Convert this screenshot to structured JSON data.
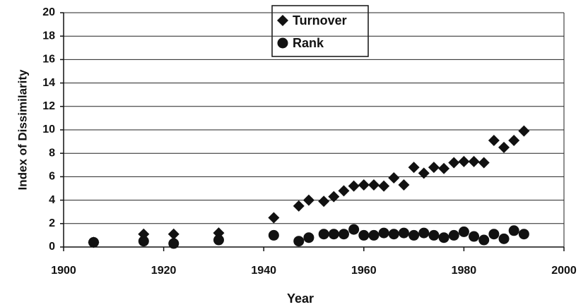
{
  "chart_data": {
    "type": "scatter",
    "xlabel": "Year",
    "ylabel": "Index of Dissimilarity",
    "xlim": [
      1900,
      2000
    ],
    "xticks": [
      1900,
      1920,
      1940,
      1960,
      1980,
      2000
    ],
    "ylim": [
      0,
      20
    ],
    "yticks": [
      0,
      2,
      4,
      6,
      8,
      10,
      12,
      14,
      16,
      18,
      20
    ],
    "grid": true,
    "legend": "top",
    "series": [
      {
        "name": "Turnover",
        "marker": "diamond",
        "color": "#111111",
        "x": [
          1906,
          1916,
          1922,
          1931,
          1942,
          1947,
          1949,
          1952,
          1954,
          1956,
          1958,
          1960,
          1962,
          1964,
          1966,
          1968,
          1970,
          1972,
          1974,
          1976,
          1978,
          1980,
          1982,
          1984,
          1986,
          1988,
          1990,
          1992
        ],
        "values": [
          0.4,
          1.1,
          1.1,
          1.2,
          2.5,
          3.5,
          4.0,
          3.9,
          4.3,
          4.8,
          5.2,
          5.3,
          5.3,
          5.2,
          5.9,
          5.3,
          6.8,
          6.3,
          6.8,
          6.7,
          7.2,
          7.3,
          7.3,
          7.2,
          9.1,
          8.5,
          9.1,
          9.9
        ]
      },
      {
        "name": "Rank",
        "marker": "circle",
        "color": "#111111",
        "x": [
          1906,
          1916,
          1922,
          1931,
          1942,
          1947,
          1949,
          1952,
          1954,
          1956,
          1958,
          1960,
          1962,
          1964,
          1966,
          1968,
          1970,
          1972,
          1974,
          1976,
          1978,
          1980,
          1982,
          1984,
          1986,
          1988,
          1990,
          1992
        ],
        "values": [
          0.4,
          0.5,
          0.3,
          0.6,
          1.0,
          0.5,
          0.8,
          1.1,
          1.1,
          1.1,
          1.5,
          1.0,
          1.0,
          1.2,
          1.1,
          1.2,
          1.0,
          1.2,
          1.0,
          0.8,
          1.0,
          1.3,
          0.9,
          0.6,
          1.1,
          0.7,
          1.4,
          1.1
        ]
      }
    ]
  }
}
